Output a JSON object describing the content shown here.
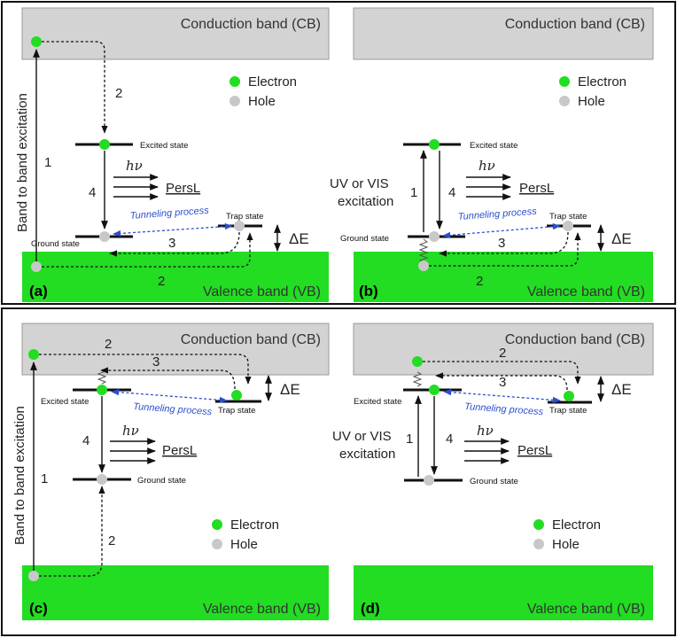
{
  "colors": {
    "conduction_band": "#d3d3d3",
    "valence_band": "#22dd22",
    "electron": "#22dd22",
    "hole": "#c8c8c8",
    "tunneling": "#2a4fcf"
  },
  "common": {
    "cb_label": "Conduction band (CB)",
    "vb_label": "Valence band (VB)",
    "electron_legend": "Electron",
    "hole_legend": "Hole",
    "excited_state": "Excited state",
    "ground_state": "Ground state",
    "trap_state": "Trap state",
    "tunneling": "Tunneling process",
    "persl": "PersL",
    "hv": "hν",
    "delta_e": "ΔE",
    "band_to_band": "Band to band excitation",
    "uv_line1": "UV or VIS",
    "uv_line2": "excitation",
    "step1": "1",
    "step2": "2",
    "step3": "3",
    "step4": "4"
  },
  "panels": [
    {
      "letter": "(a)"
    },
    {
      "letter": "(b)"
    },
    {
      "letter": "(c)"
    },
    {
      "letter": "(d)"
    }
  ]
}
